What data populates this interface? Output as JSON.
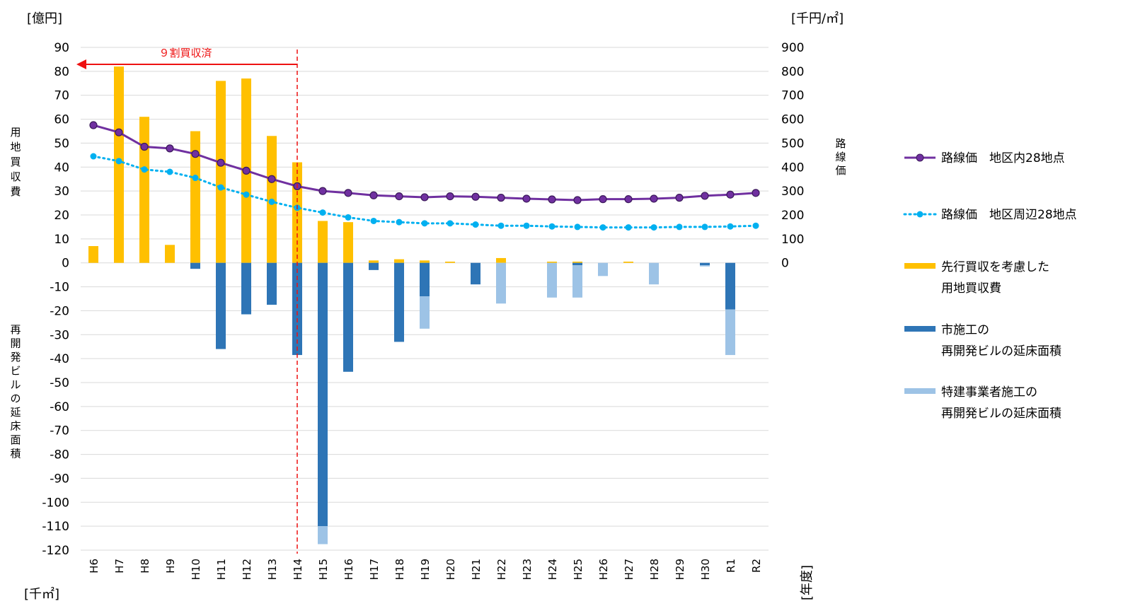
{
  "chart_data": {
    "type": "bar",
    "categories": [
      "H6",
      "H7",
      "H8",
      "H9",
      "H10",
      "H11",
      "H12",
      "H13",
      "H14",
      "H15",
      "H16",
      "H17",
      "H18",
      "H19",
      "H20",
      "H21",
      "H22",
      "H23",
      "H24",
      "H25",
      "H26",
      "H27",
      "H28",
      "H29",
      "H30",
      "R1",
      "R2"
    ],
    "left_axis": {
      "unit_top": "[億円]",
      "unit_bottom": "[千㎡]",
      "tick_labels": [
        "90",
        "80",
        "70",
        "60",
        "50",
        "40",
        "30",
        "20",
        "10",
        "0",
        "-10",
        "-20",
        "-30",
        "-40",
        "-50",
        "-60",
        "-70",
        "-80",
        "-90",
        "-100",
        "-110",
        "-120"
      ],
      "ylim": [
        -120,
        90
      ],
      "label_upper": "用地買収費",
      "label_lower": "再開発ビルの延床面積"
    },
    "right_axis": {
      "unit_top": "[千円/㎡]",
      "tick_labels": [
        "900",
        "800",
        "700",
        "600",
        "500",
        "400",
        "300",
        "200",
        "100",
        "0"
      ],
      "ylim": [
        0,
        900
      ],
      "label": "路線価"
    },
    "x_unit": "[年度]",
    "series": [
      {
        "name": "先行買収を考慮した\n用地買収費",
        "kind": "bar",
        "axis": "left",
        "color": "#ffc000",
        "values": [
          7,
          82,
          61,
          7.5,
          55,
          76,
          77,
          53,
          42,
          17.5,
          17,
          1,
          1.5,
          1,
          0.5,
          0,
          2,
          0,
          0.5,
          0.5,
          0,
          0.5,
          0,
          0,
          0,
          0,
          0
        ]
      },
      {
        "name": "市施工の\n再開発ビルの延床面積",
        "kind": "bar",
        "axis": "left",
        "color": "#2e75b6",
        "values": [
          0,
          0,
          0,
          0,
          -2.5,
          -36,
          -21.5,
          -17.5,
          -38.5,
          -110,
          -45.5,
          -3,
          -33,
          -14,
          0,
          -9,
          0,
          0,
          0,
          -1,
          0,
          0,
          0,
          0,
          -1,
          -19.5,
          0
        ]
      },
      {
        "name": "特建事業者施工の\n再開発ビルの延床面積",
        "kind": "bar",
        "axis": "left",
        "color": "#9dc3e6",
        "values": [
          0,
          0,
          0,
          0,
          0,
          0,
          0,
          0,
          0,
          -7.5,
          0,
          0,
          0,
          -13.5,
          0,
          0,
          -17,
          0,
          -14.5,
          -13.5,
          -5.5,
          0,
          -9,
          0,
          -0.5,
          -19,
          0
        ]
      },
      {
        "name": "路線価 地区内28地点",
        "kind": "line",
        "axis": "right",
        "color": "#7030a0",
        "values": [
          575,
          545,
          485,
          478,
          455,
          418,
          385,
          350,
          320,
          300,
          292,
          282,
          278,
          274,
          278,
          276,
          272,
          268,
          265,
          262,
          266,
          266,
          268,
          272,
          280,
          285,
          292
        ]
      },
      {
        "name": "路線価 地区周辺28地点",
        "kind": "line-dotted",
        "axis": "right",
        "color": "#00b0f0",
        "values": [
          445,
          425,
          390,
          380,
          355,
          315,
          285,
          255,
          230,
          210,
          190,
          175,
          170,
          165,
          165,
          160,
          155,
          155,
          152,
          150,
          148,
          148,
          148,
          150,
          150,
          152,
          155
        ]
      }
    ],
    "legend": {
      "placement": "right",
      "items": [
        {
          "line1": "路線価　地区内28地点",
          "line2": ""
        },
        {
          "line1": "路線価　地区周辺28地点",
          "line2": ""
        },
        {
          "line1": "先行買収を考慮した",
          "line2": "用地買収費"
        },
        {
          "line1": "市施工の",
          "line2": "再開発ビルの延床面積"
        },
        {
          "line1": "特建事業者施工の",
          "line2": "再開発ビルの延床面積"
        }
      ]
    },
    "annotation": {
      "text": "９割買収済",
      "at_category": "H14"
    }
  }
}
